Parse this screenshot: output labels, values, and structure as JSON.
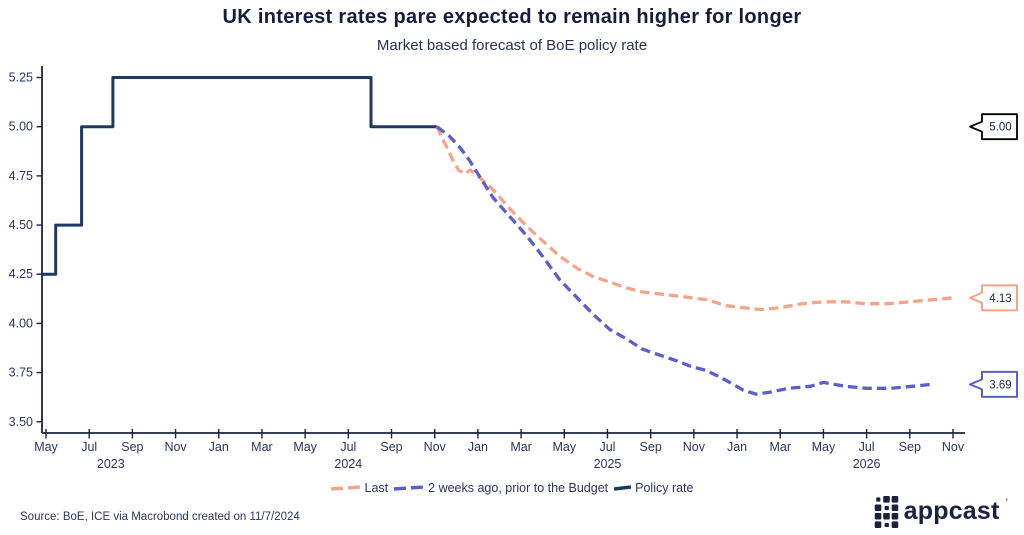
{
  "header": {
    "title": "UK interest rates pare expected to remain higher for longer",
    "subtitle": "Market based forecast of BoE policy rate"
  },
  "footer": {
    "source": "Source: BoE, ICE via Macrobond created on 11/7/2024",
    "logo_text": "appcast",
    "logo_mark": "’"
  },
  "colors": {
    "navy": "#1f3a5f",
    "salmon": "#f5a48b",
    "blue": "#5c5fc7",
    "axis": "#1b2240",
    "tick_text": "#2d3461",
    "black": "#000000"
  },
  "chart_data": {
    "type": "line",
    "title": "UK interest rates pare expected to remain higher for longer",
    "subtitle": "Market based forecast of BoE policy rate",
    "x_unit": "months since May 2023",
    "ylim": [
      3.5,
      5.25
    ],
    "grid": false,
    "legend_position": "bottom",
    "y_ticks": [
      "5.25",
      "5.00",
      "4.75",
      "4.50",
      "4.25",
      "4.00",
      "3.75",
      "3.50"
    ],
    "y_tick_values": [
      5.25,
      5.0,
      4.75,
      4.5,
      4.25,
      4.0,
      3.75,
      3.5
    ],
    "x_ticks": [
      {
        "m": 0,
        "label": "May"
      },
      {
        "m": 2,
        "label": "Jul"
      },
      {
        "m": 4,
        "label": "Sep"
      },
      {
        "m": 6,
        "label": "Nov"
      },
      {
        "m": 8,
        "label": "Jan"
      },
      {
        "m": 10,
        "label": "Mar"
      },
      {
        "m": 12,
        "label": "May"
      },
      {
        "m": 14,
        "label": "Jul"
      },
      {
        "m": 16,
        "label": "Sep"
      },
      {
        "m": 18,
        "label": "Nov"
      },
      {
        "m": 20,
        "label": "Jan"
      },
      {
        "m": 22,
        "label": "Mar"
      },
      {
        "m": 24,
        "label": "May"
      },
      {
        "m": 26,
        "label": "Jul"
      },
      {
        "m": 28,
        "label": "Sep"
      },
      {
        "m": 30,
        "label": "Nov"
      },
      {
        "m": 32,
        "label": "Jan"
      },
      {
        "m": 34,
        "label": "Mar"
      },
      {
        "m": 36,
        "label": "May"
      },
      {
        "m": 38,
        "label": "Jul"
      },
      {
        "m": 40,
        "label": "Sep"
      },
      {
        "m": 42,
        "label": "Nov"
      }
    ],
    "year_labels": [
      {
        "m": 3,
        "label": "2023"
      },
      {
        "m": 14,
        "label": "2024"
      },
      {
        "m": 26,
        "label": "2025"
      },
      {
        "m": 38,
        "label": "2026"
      }
    ],
    "series": [
      {
        "name": "Policy rate",
        "color": "#1f3a5f",
        "style": "solid",
        "points": [
          [
            -0.18,
            4.25
          ],
          [
            0.45,
            4.25
          ],
          [
            0.45,
            4.5
          ],
          [
            1.65,
            4.5
          ],
          [
            1.65,
            5.0
          ],
          [
            3.1,
            5.0
          ],
          [
            3.1,
            5.25
          ],
          [
            15.05,
            5.25
          ],
          [
            15.05,
            5.0
          ],
          [
            18.1,
            5.0
          ]
        ]
      },
      {
        "name": "Last",
        "color": "#f5a48b",
        "style": "dashed",
        "points": [
          [
            18.1,
            5.0
          ],
          [
            18.45,
            4.92
          ],
          [
            18.8,
            4.84
          ],
          [
            19.1,
            4.78
          ],
          [
            19.4,
            4.76
          ],
          [
            19.65,
            4.78
          ],
          [
            19.9,
            4.76
          ],
          [
            20.2,
            4.73
          ],
          [
            20.7,
            4.68
          ],
          [
            21.5,
            4.58
          ],
          [
            22.3,
            4.49
          ],
          [
            23.1,
            4.41
          ],
          [
            23.8,
            4.34
          ],
          [
            24.6,
            4.28
          ],
          [
            25.3,
            4.24
          ],
          [
            26.1,
            4.21
          ],
          [
            26.9,
            4.18
          ],
          [
            27.6,
            4.16
          ],
          [
            28.4,
            4.15
          ],
          [
            29.2,
            4.14
          ],
          [
            29.9,
            4.13
          ],
          [
            30.6,
            4.12
          ],
          [
            31.5,
            4.09
          ],
          [
            32.3,
            4.08
          ],
          [
            33.1,
            4.07
          ],
          [
            34.0,
            4.08
          ],
          [
            35.0,
            4.1
          ],
          [
            36.0,
            4.11
          ],
          [
            37.0,
            4.11
          ],
          [
            38.0,
            4.1
          ],
          [
            39.0,
            4.1
          ],
          [
            40.0,
            4.11
          ],
          [
            41.0,
            4.12
          ],
          [
            42.0,
            4.13
          ]
        ]
      },
      {
        "name": "2 weeks ago, prior to the Budget",
        "color": "#5c5fc7",
        "style": "dashed",
        "points": [
          [
            18.1,
            5.0
          ],
          [
            18.7,
            4.95
          ],
          [
            19.2,
            4.89
          ],
          [
            19.6,
            4.83
          ],
          [
            20.0,
            4.76
          ],
          [
            20.7,
            4.64
          ],
          [
            21.5,
            4.54
          ],
          [
            22.3,
            4.44
          ],
          [
            23.0,
            4.34
          ],
          [
            23.8,
            4.22
          ],
          [
            24.6,
            4.13
          ],
          [
            25.3,
            4.05
          ],
          [
            26.1,
            3.97
          ],
          [
            26.9,
            3.92
          ],
          [
            27.6,
            3.87
          ],
          [
            28.4,
            3.84
          ],
          [
            29.2,
            3.81
          ],
          [
            29.9,
            3.78
          ],
          [
            30.6,
            3.76
          ],
          [
            31.5,
            3.71
          ],
          [
            32.3,
            3.66
          ],
          [
            32.9,
            3.64
          ],
          [
            33.5,
            3.65
          ],
          [
            34.4,
            3.67
          ],
          [
            35.4,
            3.68
          ],
          [
            36.0,
            3.7
          ],
          [
            37.0,
            3.68
          ],
          [
            38.0,
            3.67
          ],
          [
            39.1,
            3.67
          ],
          [
            40.1,
            3.68
          ],
          [
            41.0,
            3.69
          ]
        ]
      }
    ],
    "end_labels": [
      {
        "text": "5.00",
        "value": 5.0,
        "color": "#000000"
      },
      {
        "text": "4.13",
        "value": 4.13,
        "color": "#f5a48b"
      },
      {
        "text": "3.69",
        "value": 3.69,
        "color": "#5c5fc7"
      }
    ],
    "legend": [
      {
        "label": "Last",
        "color": "#f5a48b",
        "style": "dashed"
      },
      {
        "label": "2 weeks ago, prior to the Budget",
        "color": "#5c5fc7",
        "style": "dashed"
      },
      {
        "label": "Policy rate",
        "color": "#1f3a5f",
        "style": "solid"
      }
    ]
  }
}
